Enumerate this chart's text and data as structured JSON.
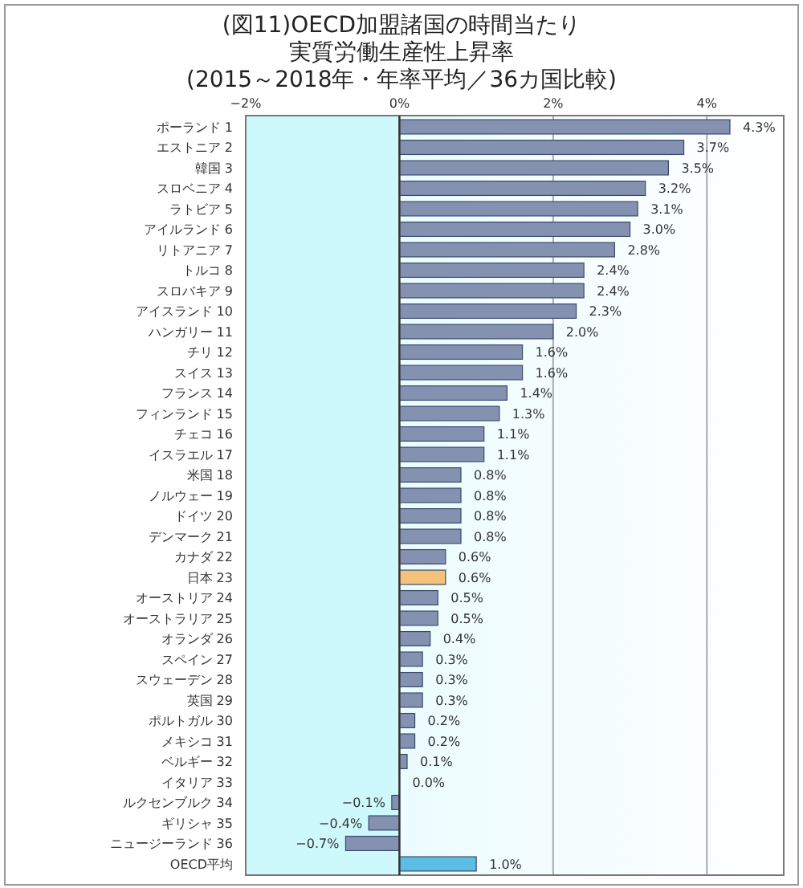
{
  "chart_data": {
    "type": "bar",
    "orientation": "horizontal",
    "title": "(図11)OECD加盟諸国の時間当たり実質労働生産性上昇率",
    "subtitle": "(2015～2018年・年率平均／36カ国比較)",
    "categories": [
      "ポーランド 1",
      "エストニア 2",
      "韓国 3",
      "スロベニア 4",
      "ラトビア 5",
      "アイルランド 6",
      "リトアニア 7",
      "トルコ 8",
      "スロバキア 9",
      "アイスランド 10",
      "ハンガリー 11",
      "チリ 12",
      "スイス 13",
      "フランス 14",
      "フィンランド 15",
      "チェコ 16",
      "イスラエル 17",
      "米国 18",
      "ノルウェー 19",
      "ドイツ 20",
      "デンマーク 21",
      "カナダ 22",
      "日本 23",
      "オーストリア 24",
      "オーストラリア 25",
      "オランダ 26",
      "スペイン 27",
      "スウェーデン 28",
      "英国 29",
      "ポルトガル 30",
      "メキシコ 31",
      "ベルギー 32",
      "イタリア 33",
      "ルクセンブルク 34",
      "ギリシャ 35",
      "ニュージーランド 36",
      "OECD平均"
    ],
    "values": [
      4.3,
      3.7,
      3.5,
      3.2,
      3.1,
      3.0,
      2.8,
      2.4,
      2.4,
      2.3,
      2.0,
      1.6,
      1.6,
      1.4,
      1.3,
      1.1,
      1.1,
      0.8,
      0.8,
      0.8,
      0.8,
      0.6,
      0.6,
      0.5,
      0.5,
      0.4,
      0.3,
      0.3,
      0.3,
      0.2,
      0.2,
      0.1,
      0.0,
      -0.1,
      -0.4,
      -0.7,
      1.0
    ],
    "value_labels": [
      "4.3%",
      "3.7%",
      "3.5%",
      "3.2%",
      "3.1%",
      "3.0%",
      "2.8%",
      "2.4%",
      "2.4%",
      "2.3%",
      "2.0%",
      "1.6%",
      "1.6%",
      "1.4%",
      "1.3%",
      "1.1%",
      "1.1%",
      "0.8%",
      "0.8%",
      "0.8%",
      "0.8%",
      "0.6%",
      "0.6%",
      "0.5%",
      "0.5%",
      "0.4%",
      "0.3%",
      "0.3%",
      "0.3%",
      "0.2%",
      "0.2%",
      "0.1%",
      "0.0%",
      "−0.1%",
      "−0.4%",
      "−0.7%",
      "1.0%"
    ],
    "colors": [
      "#8591b0",
      "#8591b0",
      "#8591b0",
      "#8591b0",
      "#8591b0",
      "#8591b0",
      "#8591b0",
      "#8591b0",
      "#8591b0",
      "#8591b0",
      "#8591b0",
      "#8591b0",
      "#8591b0",
      "#8591b0",
      "#8591b0",
      "#8591b0",
      "#8591b0",
      "#8591b0",
      "#8591b0",
      "#8591b0",
      "#8591b0",
      "#8591b0",
      "#f5c27a",
      "#8591b0",
      "#8591b0",
      "#8591b0",
      "#8591b0",
      "#8591b0",
      "#8591b0",
      "#8591b0",
      "#8591b0",
      "#8591b0",
      "#8591b0",
      "#8591b0",
      "#8591b0",
      "#8591b0",
      "#5bbde3"
    ],
    "xlim": [
      -2,
      5
    ],
    "xticks": [
      {
        "value": -2,
        "label": "−2%"
      },
      {
        "value": 0,
        "label": "0%"
      },
      {
        "value": 2,
        "label": "2%"
      },
      {
        "value": 4,
        "label": "4%"
      }
    ],
    "grid": "x",
    "bands": [
      {
        "axis": "x",
        "from": -2,
        "to": 0,
        "color": "#cdf9fc"
      }
    ]
  }
}
